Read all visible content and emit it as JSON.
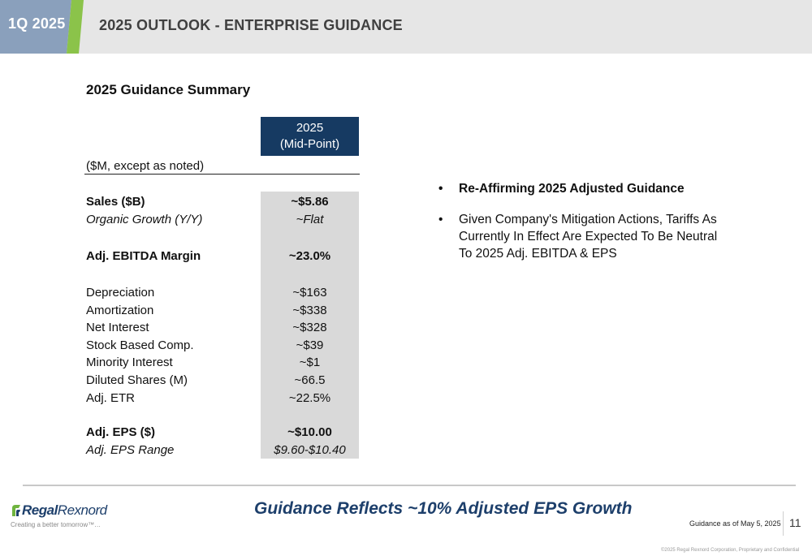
{
  "header": {
    "tag": "1Q 2025",
    "title": "2025 OUTLOOK - ENTERPRISE GUIDANCE",
    "tag_color": "#8aa0bc",
    "accent_color": "#8bc34a"
  },
  "summary": {
    "title": "2025 Guidance Summary",
    "column_header_line1": "2025",
    "column_header_line2": "(Mid-Point)",
    "units_note": "($M, except as noted)",
    "rows": [
      {
        "label": "Sales ($B)",
        "value": "~$5.86",
        "style": "bold"
      },
      {
        "label": "Organic Growth (Y/Y)",
        "value": "~Flat",
        "style": "italic"
      },
      {
        "label": "Adj. EBITDA Margin",
        "value": "~23.0%",
        "style": "bold"
      },
      {
        "label": "Depreciation",
        "value": "~$163",
        "style": "normal"
      },
      {
        "label": "Amortization",
        "value": "~$338",
        "style": "normal"
      },
      {
        "label": "Net Interest",
        "value": "~$328",
        "style": "normal"
      },
      {
        "label": "Stock Based Comp.",
        "value": "~$39",
        "style": "normal"
      },
      {
        "label": "Minority Interest",
        "value": "~$1",
        "style": "normal"
      },
      {
        "label": "Diluted Shares (M)",
        "value": "~66.5",
        "style": "normal"
      },
      {
        "label": "Adj. ETR",
        "value": "~22.5%",
        "style": "normal"
      },
      {
        "label": "Adj. EPS ($)",
        "value": "~$10.00",
        "style": "bold"
      },
      {
        "label": "Adj. EPS Range",
        "value": "$9.60-$10.40",
        "style": "italic"
      }
    ]
  },
  "bullets": [
    {
      "text": "Re-Affirming 2025 Adjusted Guidance",
      "style": "bold"
    },
    {
      "text": "Given Company's Mitigation Actions, Tariffs As Currently In Effect Are Expected To Be Neutral To 2025 Adj. EBITDA & EPS",
      "style": "normal"
    }
  ],
  "footer": {
    "logo_text_bold": "Regal",
    "logo_text_regular": "Rexnord",
    "tagline": "Creating a better tomorrow™…",
    "headline": "Guidance Reflects ~10% Adjusted EPS Growth",
    "as_of": "Guidance as of May 5, 2025",
    "page_number": "11",
    "copyright": "©2025 Regal Rexnord Corporation, Proprietary and Confidential",
    "brand_color": "#1d3f6b",
    "logo_accent_color": "#6fb43f"
  }
}
